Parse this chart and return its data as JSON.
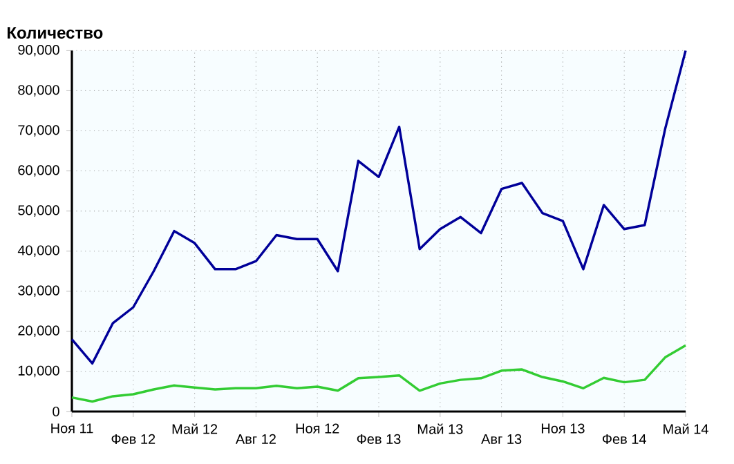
{
  "chart_data": {
    "type": "line",
    "ylabel": "Количество",
    "categories": [
      "Ноя 11",
      null,
      null,
      "Фев 12",
      null,
      null,
      "Май 12",
      null,
      null,
      "Авг 12",
      null,
      null,
      "Ноя 12",
      null,
      null,
      "Фев 13",
      null,
      null,
      "Май 13",
      null,
      null,
      "Авг 13",
      null,
      null,
      "Ноя 13",
      null,
      null,
      "Фев 14",
      null,
      null,
      "Май 14"
    ],
    "series": [
      {
        "color": "#000099",
        "values": [
          18000,
          12000,
          22000,
          26000,
          35000,
          45000,
          42000,
          35500,
          35500,
          37500,
          44000,
          43000,
          43000,
          35000,
          62500,
          58500,
          71000,
          40500,
          45500,
          48500,
          44500,
          55500,
          57000,
          49500,
          47500,
          35500,
          51500,
          45500,
          46500,
          70500,
          90000
        ]
      },
      {
        "color": "#33cc33",
        "values": [
          3500,
          2500,
          3800,
          4300,
          5500,
          6500,
          6000,
          5500,
          5800,
          5800,
          6400,
          5800,
          6200,
          5200,
          8300,
          8600,
          9000,
          5200,
          7000,
          7900,
          8300,
          10200,
          10500,
          8600,
          7500,
          5800,
          8400,
          7300,
          7900,
          13500,
          16500
        ]
      }
    ],
    "ylim": [
      0,
      90000
    ],
    "yticks": [
      0,
      {
        "value": 10000,
        "label": "10,000"
      },
      {
        "value": 20000,
        "label": "20,000"
      },
      {
        "value": 30000,
        "label": "30,000"
      },
      {
        "value": 40000,
        "label": "40,000"
      },
      {
        "value": 50000,
        "label": "50,000"
      },
      {
        "value": 60000,
        "label": "60,000"
      },
      {
        "value": 70000,
        "label": "70,000"
      },
      {
        "value": 80000,
        "label": "80,000"
      },
      {
        "value": 90000,
        "label": "90,000"
      }
    ],
    "grid": true,
    "marker": "none",
    "line_style": "solid"
  }
}
